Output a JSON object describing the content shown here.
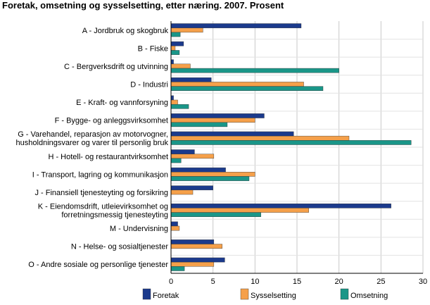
{
  "chart_data": {
    "type": "bar",
    "orientation": "horizontal",
    "title": "Foretak, omsetning og sysselsetting, etter næring. 2007. Prosent",
    "xlabel": "",
    "ylabel": "",
    "xlim": [
      0,
      30
    ],
    "xticks": [
      0,
      5,
      10,
      15,
      20,
      25,
      30
    ],
    "grid": true,
    "legend_position": "bottom",
    "categories": [
      [
        "A - Jordbruk og skogbruk"
      ],
      [
        "B - Fiske"
      ],
      [
        "C - Bergverksdrift og utvinning"
      ],
      [
        "D - Industri"
      ],
      [
        "E - Kraft- og vannforsyning"
      ],
      [
        "F - Bygge- og anleggsvirksomhet"
      ],
      [
        "G - Varehandel, reparasjon av motorvogner,",
        "husholdningsvarer og varer til personlig bruk"
      ],
      [
        "H - Hotell- og restaurantvirksomhet"
      ],
      [
        "I - Transport, lagring og kommunikasjon"
      ],
      [
        "J - Finansiell tjenesteyting og forsikring"
      ],
      [
        "K - Eiendomsdrift, utleievirksomhet og",
        "forretningsmessig tjenesteyting"
      ],
      [
        "M - Undervisning"
      ],
      [
        "N - Helse- og sosialtjenester"
      ],
      [
        "O - Andre sosiale og personlige tjenester"
      ]
    ],
    "series": [
      {
        "name": "Foretak",
        "color": "#1b3a8c",
        "values": [
          15.5,
          1.5,
          0.3,
          4.8,
          0.3,
          11.1,
          14.6,
          2.8,
          6.5,
          5.0,
          26.2,
          0.8,
          5.1,
          6.4
        ]
      },
      {
        "name": "Sysselsetting",
        "color": "#f5a04a",
        "values": [
          3.8,
          0.5,
          2.3,
          15.8,
          0.8,
          10.0,
          21.2,
          5.1,
          10.0,
          2.6,
          16.4,
          1.0,
          6.1,
          5.1
        ]
      },
      {
        "name": "Omsetning",
        "color": "#1a9688",
        "values": [
          1.1,
          1.0,
          20.0,
          18.1,
          2.1,
          6.7,
          28.6,
          1.2,
          9.3,
          0.0,
          10.7,
          0.0,
          0.0,
          1.6
        ]
      }
    ]
  }
}
